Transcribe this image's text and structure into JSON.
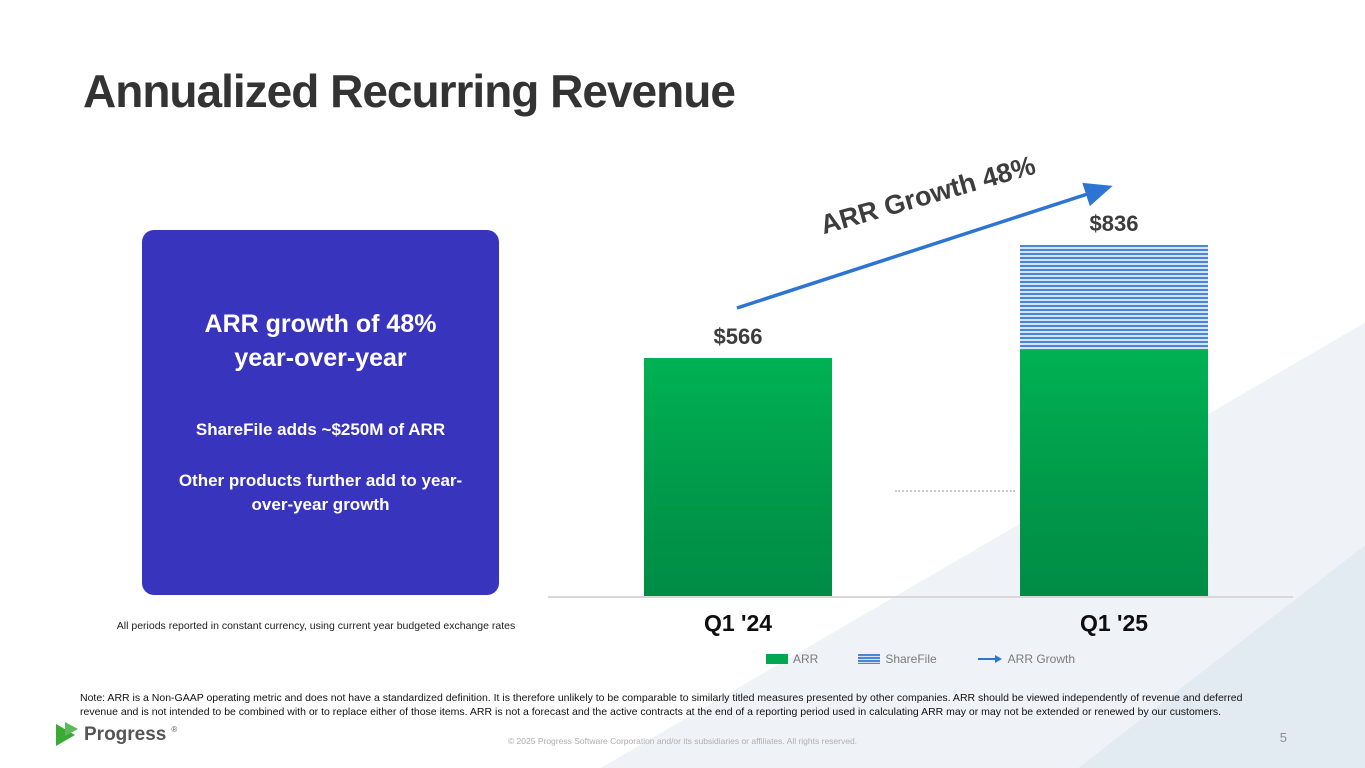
{
  "slide": {
    "title": "Annualized Recurring Revenue",
    "note": "Note: ARR is a Non-GAAP operating metric and does not have a standardized definition.  It is therefore unlikely to be comparable to similarly titled measures presented by other companies. ARR should be viewed independently of revenue and deferred revenue and is not intended to be combined with or to replace either of those items. ARR is not a forecast and the active contracts at the end of a reporting period used in calculating ARR may or may not be extended or renewed by our customers.",
    "copyright": "© 2025 Progress Software Corporation and/or its subsidiaries or affiliates. All rights reserved.",
    "page_number": "5",
    "logo_text": "Progress",
    "logo_reg": "®"
  },
  "callout": {
    "headline_line1": "ARR growth of 48%",
    "headline_line2": "year-over-year",
    "point1": "ShareFile adds ~$250M of ARR",
    "point2": "Other products further add to year-over-year growth",
    "footnote": "All periods reported in constant currency, using current year budgeted exchange rates",
    "background_color": "#3834bd"
  },
  "chart_data": {
    "type": "bar",
    "stacked": true,
    "title": "",
    "xlabel": "",
    "ylabel": "",
    "categories": [
      "Q1 '24",
      "Q1 '25"
    ],
    "series": [
      {
        "name": "ARR",
        "values": [
          566,
          586
        ],
        "color": "#00a950"
      },
      {
        "name": "ShareFile",
        "values": [
          0,
          250
        ],
        "color": "#4a86d8",
        "pattern": "horizontal-stripes"
      }
    ],
    "totals": [
      566,
      836
    ],
    "data_labels": [
      "$566",
      "$836"
    ],
    "annotation": "ARR Growth 48%",
    "legend": [
      {
        "label": "ARR",
        "swatch": "green-square"
      },
      {
        "label": "ShareFile",
        "swatch": "striped-square"
      },
      {
        "label": "ARR Growth",
        "swatch": "blue-arrow"
      }
    ],
    "ylim": [
      0,
      880
    ],
    "grid": false,
    "legend_position": "bottom",
    "arrow_color": "#2e75d3"
  }
}
